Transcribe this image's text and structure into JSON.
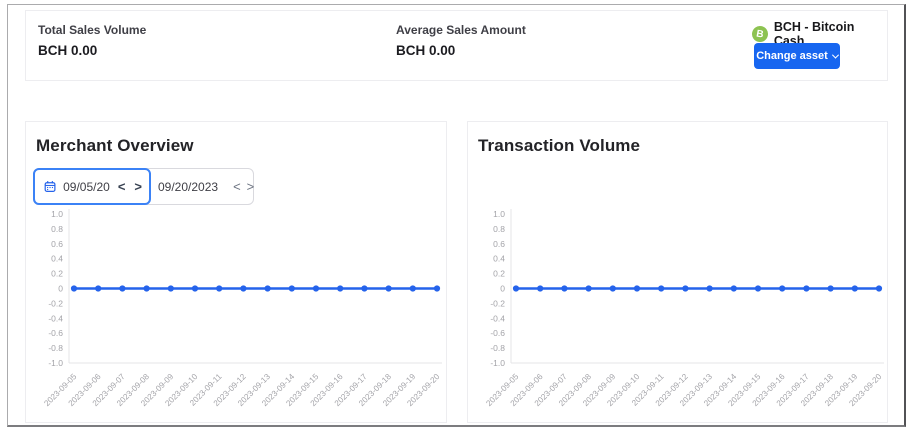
{
  "header": {
    "total_sales_label": "Total Sales Volume",
    "total_sales_value": "BCH 0.00",
    "avg_sales_label": "Average Sales Amount",
    "avg_sales_value": "BCH 0.00",
    "asset_name": "BCH - Bitcoin Cash",
    "asset_symbol": "B",
    "asset_color": "#8dc351",
    "change_asset_label": "Change asset"
  },
  "date_picker": {
    "start_value": "09/05/20",
    "end_value": "09/20/2023",
    "prev_glyph": "<",
    "next_glyph": ">"
  },
  "colors": {
    "accent_blue": "#1766f0",
    "line_blue": "#2563eb",
    "axis_gray": "#e4e4e7",
    "tick_gray": "#a3a3a8"
  },
  "chart_data": [
    {
      "type": "line",
      "title": "Merchant Overview",
      "x": [
        "2023-09-05",
        "2023-09-06",
        "2023-09-07",
        "2023-09-08",
        "2023-09-09",
        "2023-09-10",
        "2023-09-11",
        "2023-09-12",
        "2023-09-13",
        "2023-09-14",
        "2023-09-15",
        "2023-09-16",
        "2023-09-17",
        "2023-09-18",
        "2023-09-19",
        "2023-09-20"
      ],
      "values": [
        0,
        0,
        0,
        0,
        0,
        0,
        0,
        0,
        0,
        0,
        0,
        0,
        0,
        0,
        0,
        0
      ],
      "ylim": [
        -1.0,
        1.0
      ],
      "y_tick_labels": [
        "1.0",
        "0.8",
        "0.6",
        "0.4",
        "0.2",
        "0",
        "-0.2",
        "-0.4",
        "-0.6",
        "-0.8",
        "-1.0"
      ],
      "line_color": "#2563eb",
      "grid": false,
      "legend": null,
      "xlabel": "",
      "ylabel": ""
    },
    {
      "type": "line",
      "title": "Transaction Volume",
      "x": [
        "2023-09-05",
        "2023-09-06",
        "2023-09-07",
        "2023-09-08",
        "2023-09-09",
        "2023-09-10",
        "2023-09-11",
        "2023-09-12",
        "2023-09-13",
        "2023-09-14",
        "2023-09-15",
        "2023-09-16",
        "2023-09-17",
        "2023-09-18",
        "2023-09-19",
        "2023-09-20"
      ],
      "values": [
        0,
        0,
        0,
        0,
        0,
        0,
        0,
        0,
        0,
        0,
        0,
        0,
        0,
        0,
        0,
        0
      ],
      "ylim": [
        -1.0,
        1.0
      ],
      "y_tick_labels": [
        "1.0",
        "0.8",
        "0.6",
        "0.4",
        "0.2",
        "0",
        "-0.2",
        "-0.4",
        "-0.6",
        "-0.8",
        "-1.0"
      ],
      "line_color": "#2563eb",
      "grid": false,
      "legend": null,
      "xlabel": "",
      "ylabel": ""
    }
  ]
}
